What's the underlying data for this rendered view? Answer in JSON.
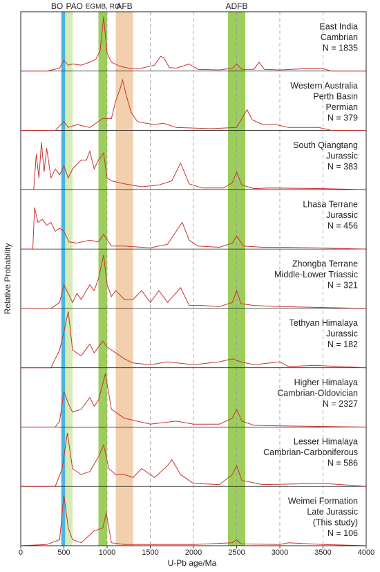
{
  "chart_data": {
    "type": "line",
    "x_label": "U-Pb age/Ma",
    "y_label": "Relative Probability",
    "xlim": [
      0,
      4000
    ],
    "xticks": [
      0,
      500,
      1000,
      1500,
      2000,
      2500,
      3000,
      3500,
      4000
    ],
    "ylim": [
      0,
      1
    ],
    "grid": true,
    "color": "#c8322d",
    "bands": [
      {
        "label": "BO",
        "range": [
          470,
          515
        ],
        "color": "#29a8e0"
      },
      {
        "label": "PAO",
        "range": [
          515,
          600
        ],
        "color": "#cfe8a8"
      },
      {
        "label": "EGMB, RO",
        "range": [
          900,
          1000
        ],
        "color": "#8cc63f"
      },
      {
        "label": "AFB",
        "range": [
          1100,
          1300
        ],
        "color": "#f0c8a0"
      },
      {
        "label": "ADFB",
        "range": [
          2400,
          2600
        ],
        "color": "#8cc63f"
      }
    ],
    "panels": [
      {
        "labels": [
          "East India",
          "Cambrian",
          "N = 1835"
        ],
        "x": [
          0,
          300,
          450,
          500,
          550,
          600,
          700,
          800,
          870,
          920,
          960,
          1000,
          1050,
          1150,
          1250,
          1400,
          1550,
          1620,
          1660,
          1720,
          1800,
          1950,
          2050,
          2300,
          2450,
          2500,
          2560,
          2700,
          2760,
          2820,
          3000,
          3300,
          3500,
          3600,
          4000
        ],
        "values": [
          0,
          0,
          0.05,
          0.18,
          0.1,
          0.12,
          0.1,
          0.15,
          0.2,
          0.35,
          0.92,
          0.3,
          0.15,
          0.08,
          0.05,
          0.05,
          0.1,
          0.25,
          0.22,
          0.06,
          0.05,
          0.12,
          0.03,
          0.02,
          0.05,
          0.12,
          0.03,
          0.03,
          0.15,
          0.03,
          0.02,
          0.04,
          0.04,
          0,
          0
        ]
      },
      {
        "labels": [
          "Western Australia",
          "Perth Basin",
          "Permian",
          "N = 379"
        ],
        "x": [
          0,
          400,
          500,
          550,
          650,
          800,
          950,
          1050,
          1100,
          1150,
          1180,
          1220,
          1280,
          1350,
          1450,
          1550,
          1650,
          1800,
          2000,
          2200,
          2500,
          2560,
          2620,
          2680,
          2800,
          2950,
          3100,
          3250,
          3450,
          3600,
          4000
        ],
        "values": [
          0,
          0,
          0.15,
          0.05,
          0.1,
          0.05,
          0.2,
          0.2,
          0.5,
          0.7,
          0.85,
          0.6,
          0.3,
          0.15,
          0.12,
          0.1,
          0.12,
          0.05,
          0.04,
          0.03,
          0.05,
          0.2,
          0.35,
          0.18,
          0.1,
          0.1,
          0.05,
          0.05,
          0.05,
          0,
          0
        ]
      },
      {
        "labels": [
          "South Qiangtang",
          "Jurassic",
          "N = 383"
        ],
        "x": [
          0,
          150,
          180,
          210,
          240,
          270,
          300,
          350,
          400,
          450,
          500,
          550,
          600,
          700,
          760,
          800,
          850,
          900,
          960,
          1000,
          1050,
          1200,
          1400,
          1600,
          1750,
          1850,
          1950,
          2100,
          2350,
          2450,
          2500,
          2560,
          2700,
          2900,
          3500,
          4000
        ],
        "values": [
          0,
          0,
          0.6,
          0.2,
          0.8,
          0.3,
          0.7,
          0.2,
          0.35,
          0.25,
          0.4,
          0.2,
          0.35,
          0.5,
          0.5,
          0.65,
          0.35,
          0.5,
          0.62,
          0.2,
          0.15,
          0.1,
          0.05,
          0.08,
          0.15,
          0.45,
          0.1,
          0.03,
          0.03,
          0.12,
          0.3,
          0.08,
          0.02,
          0.03,
          0.02,
          0
        ]
      },
      {
        "labels": [
          "Lhasa Terrane",
          "Jurassic",
          "N = 456"
        ],
        "x": [
          0,
          140,
          160,
          200,
          250,
          300,
          350,
          400,
          450,
          500,
          560,
          650,
          800,
          900,
          960,
          1050,
          1200,
          1500,
          1700,
          1800,
          1870,
          1950,
          2050,
          2300,
          2450,
          2500,
          2580,
          2800,
          3100,
          4000
        ],
        "values": [
          0,
          0,
          0.7,
          0.45,
          0.5,
          0.4,
          0.45,
          0.3,
          0.35,
          0.3,
          0.12,
          0.1,
          0.15,
          0.12,
          0.25,
          0.05,
          0.05,
          0.02,
          0.08,
          0.3,
          0.45,
          0.15,
          0.05,
          0.03,
          0.1,
          0.22,
          0.05,
          0.03,
          0.03,
          0
        ]
      },
      {
        "labels": [
          "Zhongba Terrane",
          "Middle-Lower Triassic",
          "N = 321"
        ],
        "x": [
          0,
          350,
          450,
          500,
          550,
          600,
          650,
          700,
          800,
          850,
          900,
          960,
          1000,
          1050,
          1100,
          1200,
          1300,
          1400,
          1500,
          1600,
          1700,
          1850,
          1950,
          2100,
          2300,
          2450,
          2500,
          2550,
          2700,
          3000,
          4000
        ],
        "values": [
          0,
          0,
          0.1,
          0.4,
          0.25,
          0.1,
          0.25,
          0.15,
          0.4,
          0.3,
          0.5,
          0.9,
          0.4,
          0.2,
          0.3,
          0.15,
          0.15,
          0.3,
          0.1,
          0.3,
          0.1,
          0.35,
          0.05,
          0.05,
          0.03,
          0.1,
          0.3,
          0.08,
          0.05,
          0.03,
          0
        ]
      },
      {
        "labels": [
          "Tethyan Himalaya",
          "Jurassic",
          "N = 182"
        ],
        "x": [
          0,
          350,
          400,
          450,
          500,
          550,
          600,
          700,
          800,
          850,
          950,
          1000,
          1100,
          1200,
          1300,
          1500,
          1700,
          2000,
          2300,
          2450,
          2550,
          2700,
          3000,
          3100,
          3400,
          4000
        ],
        "values": [
          0,
          0,
          0.15,
          0.3,
          0.6,
          0.95,
          0.3,
          0.2,
          0.4,
          0.25,
          0.45,
          0.35,
          0.25,
          0.15,
          0.08,
          0.05,
          0.1,
          0.05,
          0.1,
          0.15,
          0.1,
          0.05,
          0.1,
          0.02,
          0.04,
          0
        ]
      },
      {
        "labels": [
          "Higher Himalaya",
          "Cambrian-Oldovician",
          "N = 2327"
        ],
        "x": [
          0,
          400,
          450,
          500,
          550,
          600,
          700,
          800,
          850,
          900,
          980,
          1050,
          1200,
          1500,
          1800,
          2000,
          2300,
          2450,
          2500,
          2560,
          2700,
          3000,
          4000
        ],
        "values": [
          0,
          0,
          0.1,
          0.6,
          0.4,
          0.25,
          0.3,
          0.5,
          0.35,
          0.45,
          0.9,
          0.3,
          0.15,
          0.05,
          0.1,
          0.05,
          0.05,
          0.15,
          0.3,
          0.1,
          0.03,
          0.02,
          0
        ]
      },
      {
        "labels": [
          "Lesser Himalaya",
          "Cambrian-Carboniferous",
          "N = 586"
        ],
        "x": [
          0,
          400,
          480,
          540,
          600,
          700,
          800,
          900,
          960,
          1020,
          1100,
          1200,
          1300,
          1400,
          1550,
          1700,
          1750,
          1850,
          2000,
          2300,
          2450,
          2500,
          2560,
          2800,
          3500,
          4000
        ],
        "values": [
          0,
          0,
          0.3,
          0.9,
          0.3,
          0.2,
          0.25,
          0.5,
          0.7,
          0.3,
          0.2,
          0.2,
          0.15,
          0.3,
          0.15,
          0.35,
          0.45,
          0.2,
          0.05,
          0.03,
          0.2,
          0.35,
          0.1,
          0.03,
          0.05,
          0
        ]
      },
      {
        "labels": [
          "Weimei Formation",
          "Late Jurassic",
          "(This study)",
          "N = 106"
        ],
        "x": [
          0,
          300,
          450,
          500,
          550,
          600,
          700,
          850,
          950,
          990,
          1050,
          1200,
          2000,
          2450,
          2500,
          2550,
          3000,
          3100,
          3500,
          4000
        ],
        "values": [
          0,
          0.02,
          0.1,
          0.85,
          0.3,
          0.1,
          0.05,
          0.25,
          0.3,
          0.55,
          0.05,
          0.02,
          0.02,
          0.05,
          0.1,
          0.03,
          0.02,
          0.05,
          0.02,
          0
        ]
      }
    ]
  }
}
